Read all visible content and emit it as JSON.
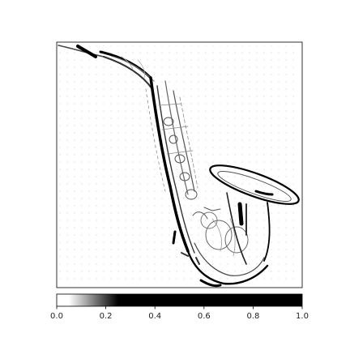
{
  "figure": {
    "background": "#ffffff",
    "image": {
      "subject": "saxophone-edge-map",
      "ink_color": "#000000",
      "paper_color": "#ffffff"
    },
    "colorbar": {
      "orientation": "horizontal",
      "min": 0.0,
      "max": 1.0,
      "threshold_low": 0.05,
      "threshold_high": 0.25,
      "low_color": "#ffffff",
      "high_color": "#000000",
      "ticks": [
        "0.0",
        "0.2",
        "0.4",
        "0.6",
        "0.8",
        "1.0"
      ],
      "tick_values": [
        0.0,
        0.2,
        0.4,
        0.6,
        0.8,
        1.0
      ]
    }
  }
}
